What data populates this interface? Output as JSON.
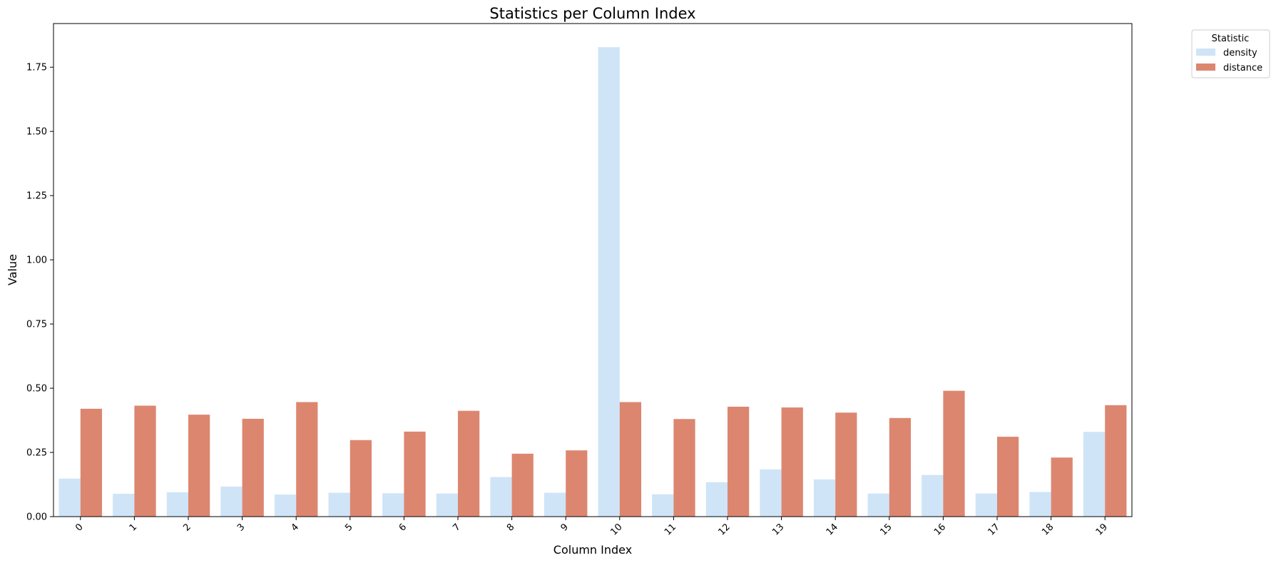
{
  "chart_data": {
    "type": "bar",
    "title": "Statistics per Column Index",
    "xlabel": "Column Index",
    "ylabel": "Value",
    "ylim": [
      0,
      1.92
    ],
    "yticks": [
      "0.00",
      "0.25",
      "0.50",
      "0.75",
      "1.00",
      "1.25",
      "1.50",
      "1.75"
    ],
    "categories": [
      "0",
      "1",
      "2",
      "3",
      "4",
      "5",
      "6",
      "7",
      "8",
      "9",
      "10",
      "11",
      "12",
      "13",
      "14",
      "15",
      "16",
      "17",
      "18",
      "19"
    ],
    "series": [
      {
        "name": "density",
        "color": "#cfe4f7",
        "values": [
          0.148,
          0.089,
          0.095,
          0.117,
          0.086,
          0.093,
          0.091,
          0.09,
          0.154,
          0.093,
          1.828,
          0.087,
          0.134,
          0.184,
          0.145,
          0.09,
          0.162,
          0.09,
          0.096,
          0.33
        ]
      },
      {
        "name": "distance",
        "color": "#dc8670",
        "values": [
          0.42,
          0.432,
          0.397,
          0.381,
          0.446,
          0.298,
          0.331,
          0.412,
          0.245,
          0.258,
          0.446,
          0.38,
          0.428,
          0.425,
          0.405,
          0.384,
          0.49,
          0.311,
          0.23,
          0.434
        ]
      }
    ],
    "legend": {
      "title": "Statistic",
      "placement": "outside top-right"
    },
    "grid": false
  }
}
